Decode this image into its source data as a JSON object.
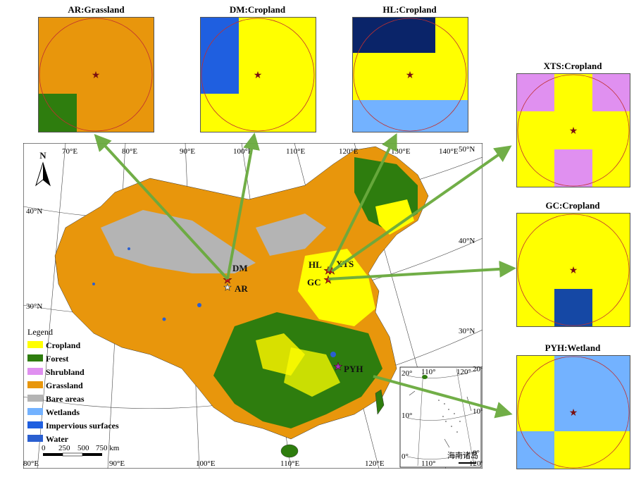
{
  "panels": {
    "ar": {
      "title": "AR:Grassland"
    },
    "dm": {
      "title": "DM:Cropland"
    },
    "hl": {
      "title": "HL:Cropland"
    },
    "xts": {
      "title": "XTS:Cropland"
    },
    "gc": {
      "title": "GC:Cropland"
    },
    "pyh": {
      "title": "PYH:Wetland"
    }
  },
  "map": {
    "north": "N",
    "lon_labels_top": [
      "70°E",
      "80°E",
      "90°E",
      "100°E",
      "110°E",
      "120°E",
      "130°E",
      "140°E"
    ],
    "lon_labels_bottom": [
      "80°E",
      "90°E",
      "100°E",
      "110°E",
      "120°E"
    ],
    "lat_labels_left": [
      "40°N",
      "30°N"
    ],
    "lat_labels_right": [
      "50°N",
      "40°N",
      "30°N",
      "20°N",
      "10°N"
    ],
    "sites": {
      "dm": "DM",
      "ar": "AR",
      "hl": "HL",
      "xts": "XTS",
      "gc": "GC",
      "pyh": "PYH"
    },
    "scale": [
      "0",
      "250",
      "500",
      "750 km"
    ],
    "inset": {
      "caption": "海南诸岛",
      "lat_ticks": [
        "20°",
        "10°",
        "0°"
      ],
      "lat_ticks_right": [
        "20°",
        "10°",
        "0°"
      ],
      "lon_ticks_top": [
        "110°",
        "120°"
      ],
      "lon_ticks_bottom": [
        "110°",
        "120°"
      ]
    }
  },
  "legend": {
    "title": "Legend",
    "items": [
      {
        "label": "Cropland",
        "color": "#ffff00"
      },
      {
        "label": "Forest",
        "color": "#2e7d0e"
      },
      {
        "label": "Shrubland",
        "color": "#e090f0"
      },
      {
        "label": "Grassland",
        "color": "#e8960c"
      },
      {
        "label": "Bare areas",
        "color": "#b4b4b4"
      },
      {
        "label": "Wetlands",
        "color": "#73b2ff"
      },
      {
        "label": "Impervious surfaces",
        "color": "#1f5fe0"
      },
      {
        "label": "Water",
        "color": "#2a5fd0"
      }
    ]
  }
}
